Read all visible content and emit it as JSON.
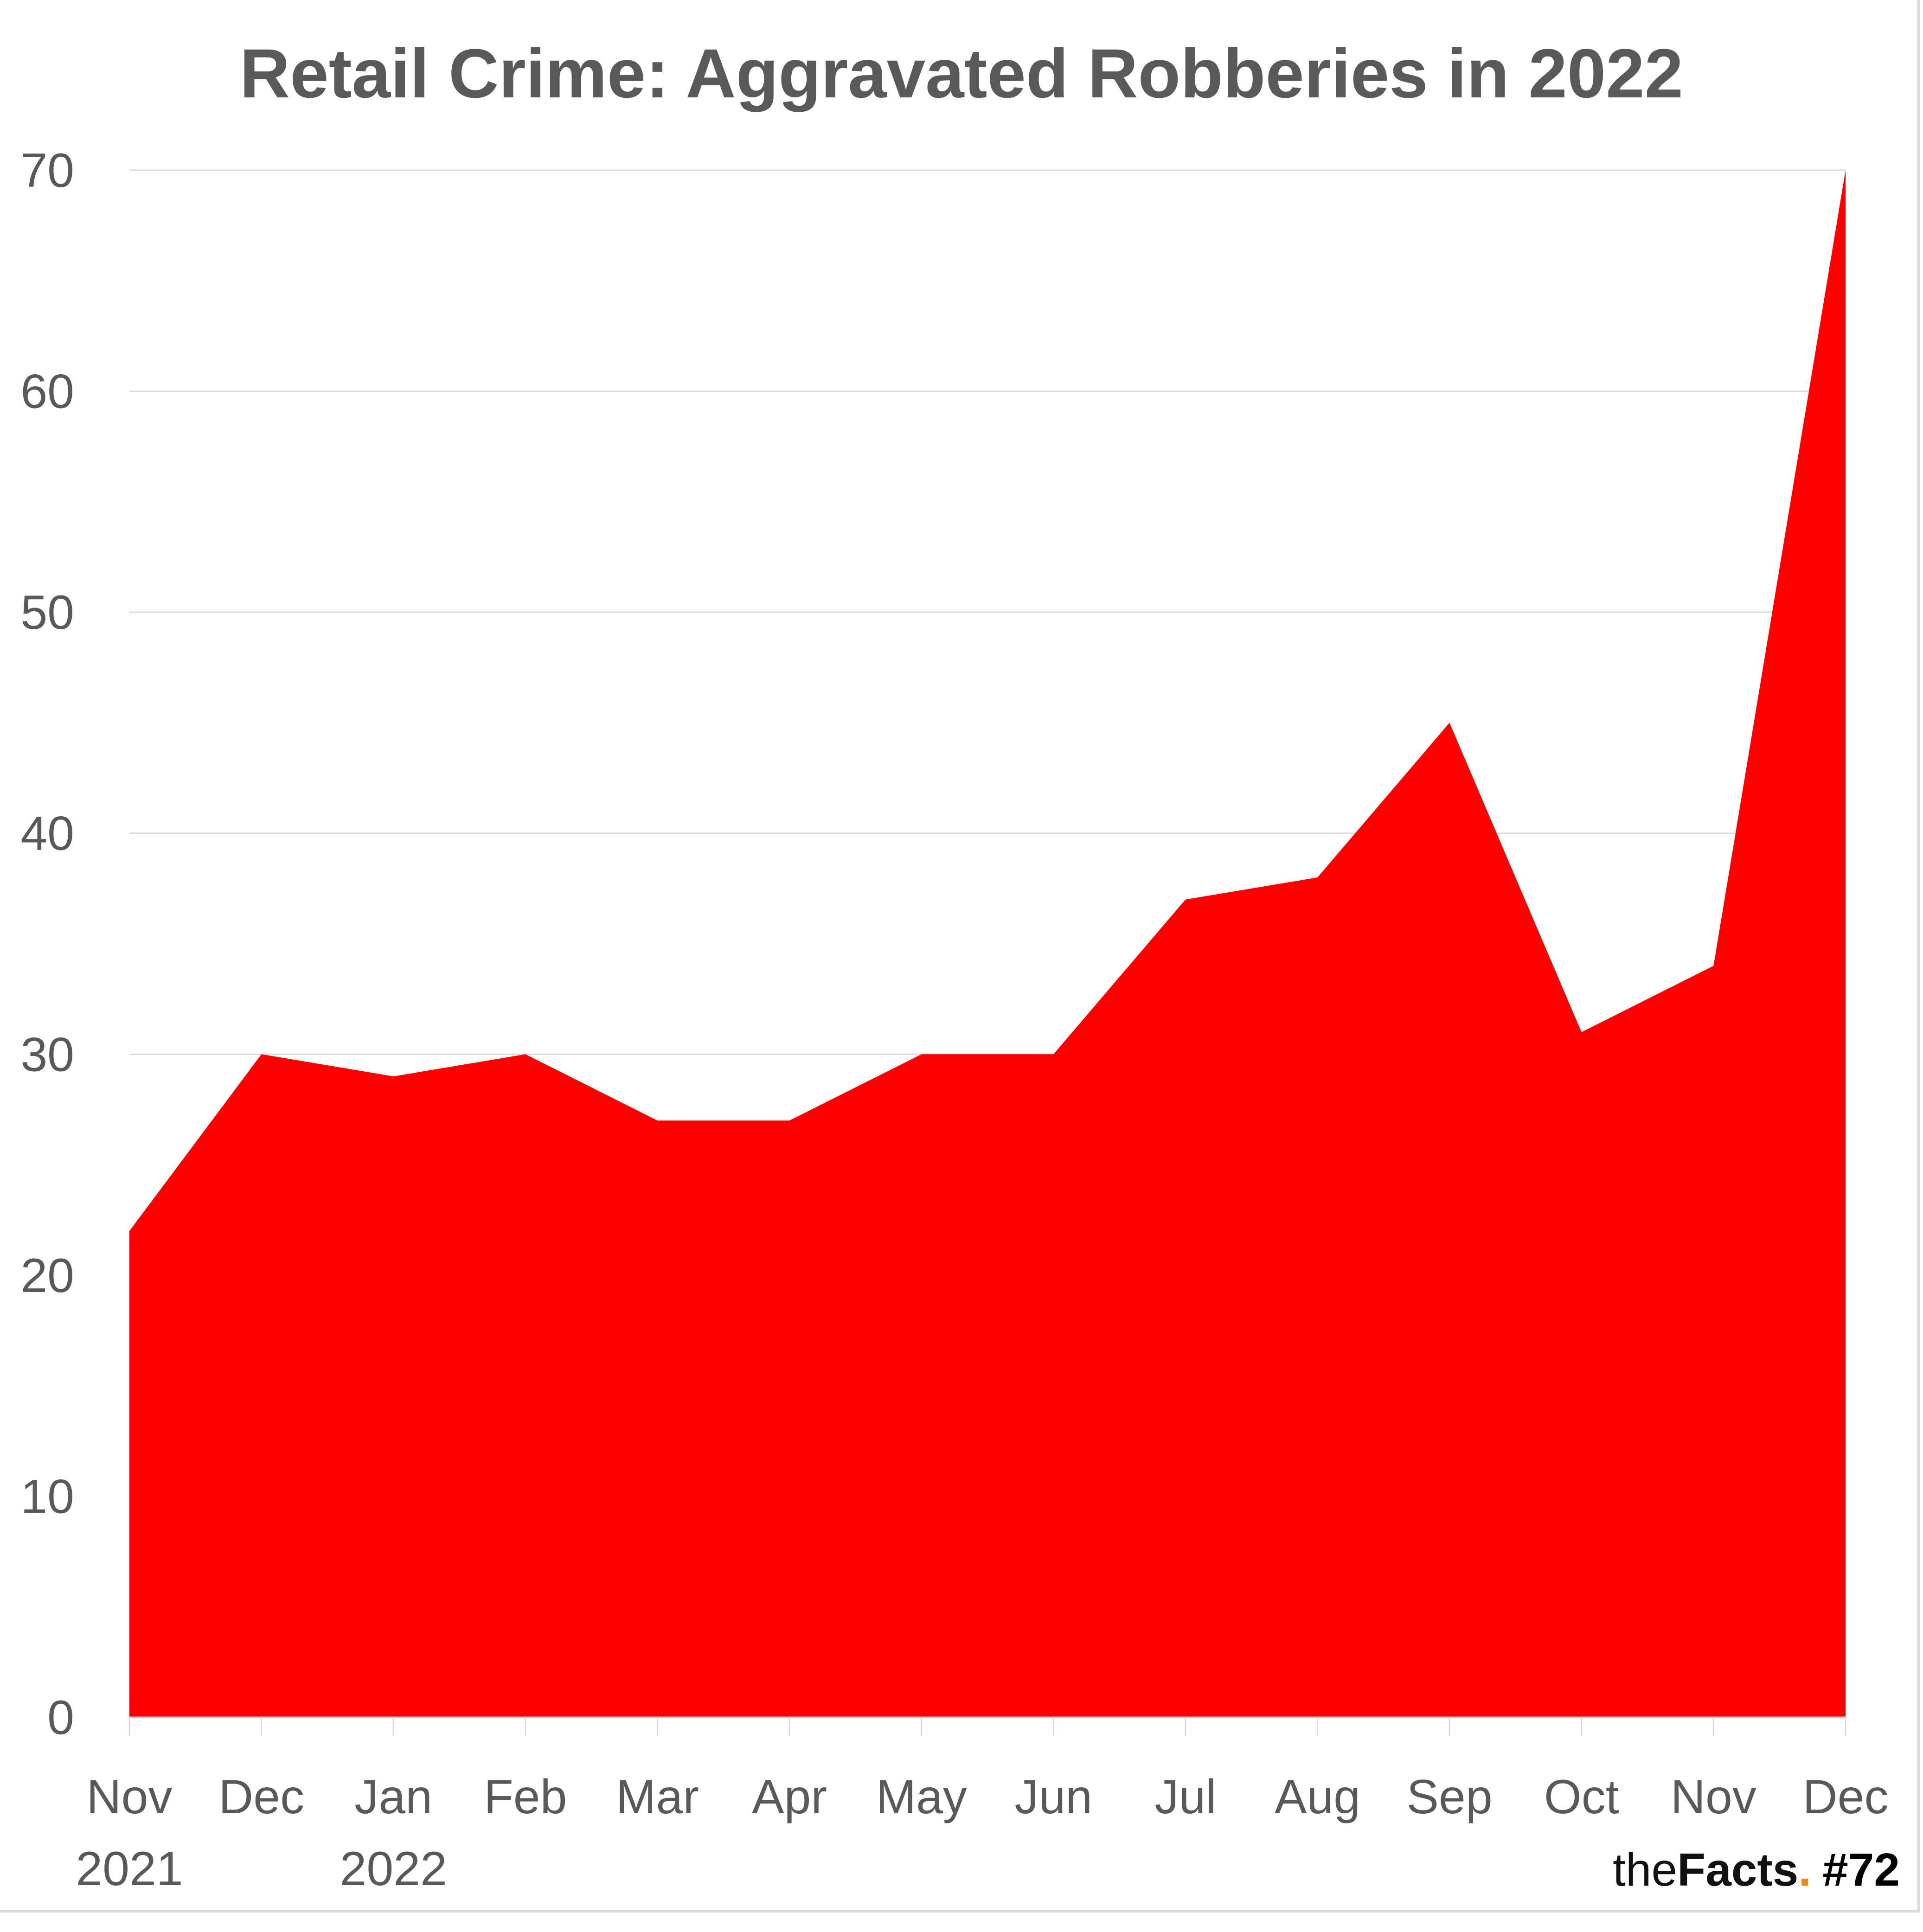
{
  "chart_data": {
    "type": "area",
    "title": "Retail Crime: Aggravated Robberies in 2022",
    "categories": [
      "Nov\n2021",
      "Dec",
      "Jan\n2022",
      "Feb",
      "Mar",
      "Apr",
      "May",
      "Jun",
      "Jul",
      "Aug",
      "Sep",
      "Oct",
      "Nov",
      "Dec"
    ],
    "category_lines": [
      [
        "Nov",
        "2021"
      ],
      [
        "Dec"
      ],
      [
        "Jan",
        "2022"
      ],
      [
        "Feb"
      ],
      [
        "Mar"
      ],
      [
        "Apr"
      ],
      [
        "May"
      ],
      [
        "Jun"
      ],
      [
        "Jul"
      ],
      [
        "Aug"
      ],
      [
        "Sep"
      ],
      [
        "Oct"
      ],
      [
        "Nov"
      ],
      [
        "Dec"
      ]
    ],
    "values": [
      22,
      30,
      29,
      30,
      27,
      27,
      30,
      30,
      37,
      38,
      45,
      31,
      34,
      70
    ],
    "ylim": [
      0,
      70
    ],
    "yticks": [
      0,
      10,
      20,
      30,
      40,
      50,
      60,
      70
    ],
    "grid": true,
    "fill_color": "#ff0000",
    "xlabel": "",
    "ylabel": ""
  },
  "brand": {
    "the": "the",
    "facts": "Facts",
    "dot": ".",
    "issue": "#72",
    "dot_color": "#f7860f"
  }
}
